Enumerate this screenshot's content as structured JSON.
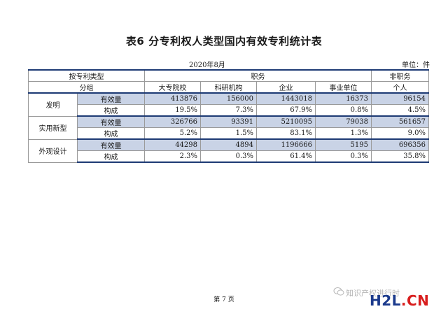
{
  "title": "表6 分专利权人类型国内有效专利统计表",
  "date": "2020年8月",
  "unit": "单位：件",
  "table": {
    "head1": {
      "c1": "按专利类型",
      "group1": "职务",
      "group2": "非职务"
    },
    "head2": {
      "c1": "分组",
      "cols": [
        "大专院校",
        "科研机构",
        "企业",
        "事业单位",
        "个人"
      ]
    },
    "sections": [
      {
        "type": "发明",
        "rows": [
          {
            "label": "有效量",
            "values": [
              "413876",
              "156000",
              "1443018",
              "16373",
              "96154"
            ]
          },
          {
            "label": "构成",
            "values": [
              "19.5%",
              "7.3%",
              "67.9%",
              "0.8%",
              "4.5%"
            ]
          }
        ]
      },
      {
        "type": "实用新型",
        "rows": [
          {
            "label": "有效量",
            "values": [
              "326766",
              "93391",
              "5210095",
              "79038",
              "561657"
            ]
          },
          {
            "label": "构成",
            "values": [
              "5.2%",
              "1.5%",
              "83.1%",
              "1.3%",
              "9.0%"
            ]
          }
        ]
      },
      {
        "type": "外观设计",
        "rows": [
          {
            "label": "有效量",
            "values": [
              "44298",
              "4894",
              "1196666",
              "5195",
              "696356"
            ]
          },
          {
            "label": "构成",
            "values": [
              "2.3%",
              "0.3%",
              "61.4%",
              "0.3%",
              "35.8%"
            ]
          }
        ]
      }
    ]
  },
  "footer": "第 7 页",
  "watermark": "知识产权进行时",
  "logo": {
    "left": "H2L",
    "right": ".CN"
  },
  "colors": {
    "highlight": "#c9d3e6",
    "rule": "#1d3a74",
    "logo_blue": "#1b3a8c",
    "logo_red": "#d81e1e"
  }
}
